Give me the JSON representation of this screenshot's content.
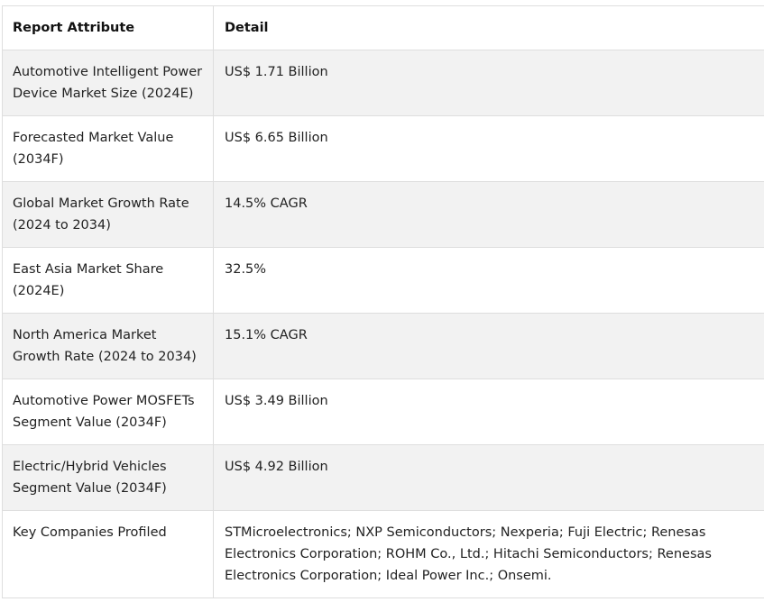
{
  "table": {
    "headers": [
      "Report Attribute",
      "Detail"
    ],
    "rows": [
      {
        "attribute": "Automotive Intelligent Power Device Market Size (2024E)",
        "detail": "US$ 1.71 Billion"
      },
      {
        "attribute": "Forecasted Market Value (2034F)",
        "detail": "US$ 6.65 Billion"
      },
      {
        "attribute": "Global Market Growth Rate (2024 to 2034)",
        "detail": "14.5% CAGR"
      },
      {
        "attribute": "East Asia Market Share (2024E)",
        "detail": "32.5%"
      },
      {
        "attribute": "North America Market Growth Rate (2024 to 2034)",
        "detail": "15.1% CAGR"
      },
      {
        "attribute": "Automotive Power MOSFETs Segment Value (2034F)",
        "detail": "US$ 3.49 Billion"
      },
      {
        "attribute": "Electric/Hybrid Vehicles Segment Value (2034F)",
        "detail": "US$ 4.92 Billion"
      },
      {
        "attribute": "Key Companies Profiled",
        "detail": "STMicroelectronics; NXP Semiconductors; Nexperia; Fuji Electric; Renesas Electronics Corporation; ROHM Co., Ltd.; Hitachi Semiconductors; Renesas Electronics Corporation; Ideal Power Inc.; Onsemi."
      }
    ]
  }
}
